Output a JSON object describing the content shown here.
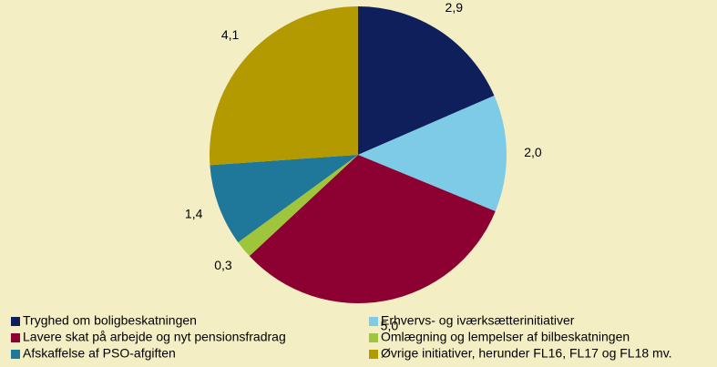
{
  "chart_data": {
    "type": "pie",
    "categories": [
      "Tryghed om boligbeskatningen",
      "Erhvervs- og iværksætterinitiativer",
      "Lavere skat på arbejde og nyt pensionsfradrag",
      "Omlægning og lempelser af bilbeskatningen",
      "Afskaffelse af PSO-afgiften",
      "Øvrige initiativer, herunder FL16, FL17 og FL18 mv."
    ],
    "values": [
      2.9,
      2.0,
      5.0,
      0.3,
      1.4,
      4.1
    ],
    "value_labels": [
      "2,9",
      "2,0",
      "5,0",
      "0,3",
      "1,4",
      "4,1"
    ],
    "colors": [
      "#0f1f5c",
      "#7ecbe8",
      "#8c0032",
      "#9fc53c",
      "#1f7799",
      "#b39a00"
    ],
    "legend": "bottom"
  }
}
